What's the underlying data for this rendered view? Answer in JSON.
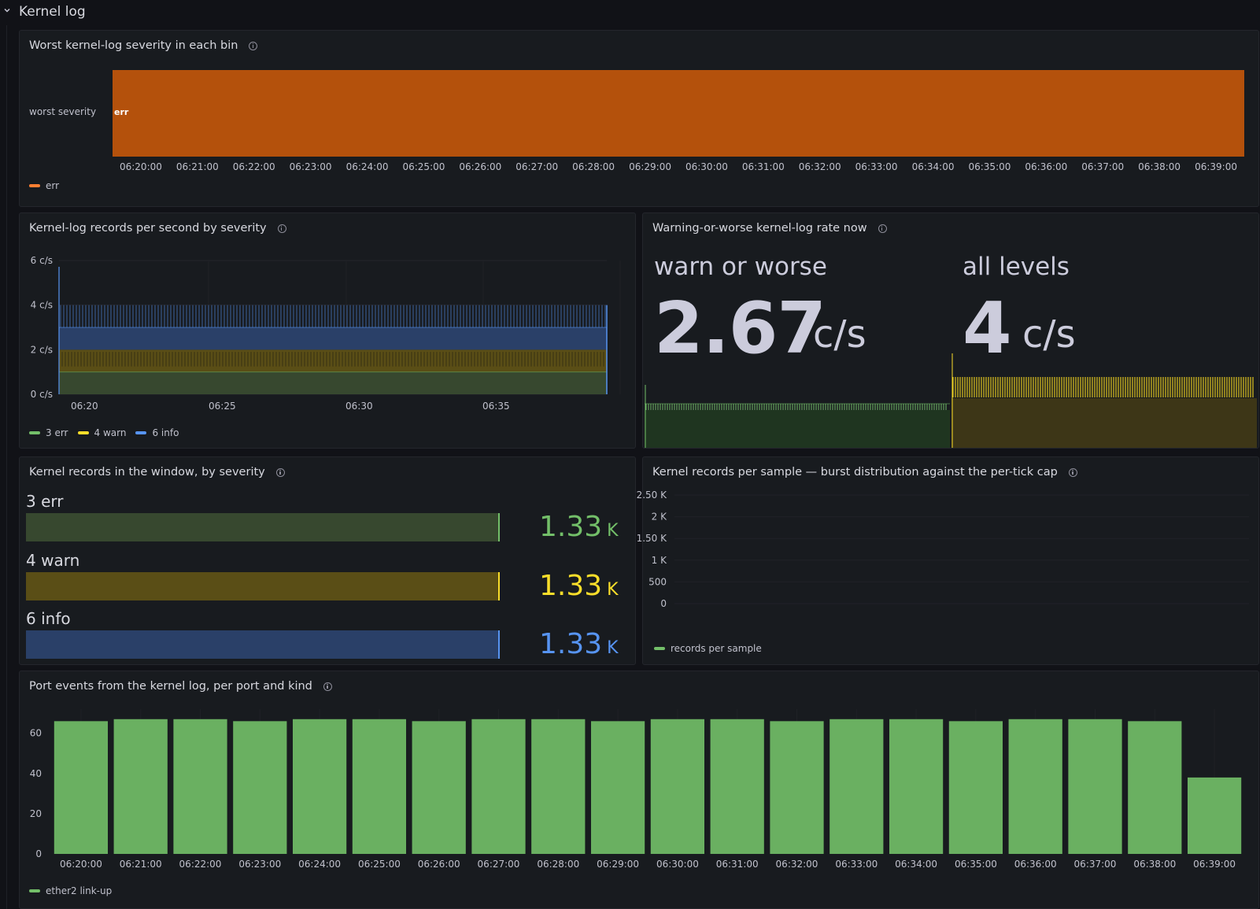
{
  "row": {
    "title": "Kernel log"
  },
  "colors": {
    "err": "#73bf69",
    "warn": "#fade2a",
    "info": "#5794f2",
    "state_err": "#b4510c",
    "legend_err": "#ff7f32"
  },
  "panels": {
    "state": {
      "title": "Worst kernel-log severity in each bin",
      "row_label": "worst severity",
      "value_label": "err",
      "times": [
        "06:20:00",
        "06:21:00",
        "06:22:00",
        "06:23:00",
        "06:24:00",
        "06:25:00",
        "06:26:00",
        "06:27:00",
        "06:28:00",
        "06:29:00",
        "06:30:00",
        "06:31:00",
        "06:32:00",
        "06:33:00",
        "06:34:00",
        "06:35:00",
        "06:36:00",
        "06:37:00",
        "06:38:00",
        "06:39:00"
      ],
      "legend": [
        "err"
      ]
    },
    "rate": {
      "title": "Kernel-log records per second by severity",
      "legend": [
        "3 err",
        "4 warn",
        "6 info"
      ]
    },
    "now": {
      "title": "Warning-or-worse kernel-log rate now",
      "stats": [
        {
          "label": "warn or worse",
          "value": "2.67",
          "unit": "c/s"
        },
        {
          "label": "all levels",
          "value": "4",
          "unit": "c/s"
        }
      ]
    },
    "window": {
      "title": "Kernel records in the window, by severity",
      "bars": [
        {
          "label": "3 err",
          "value": "1.33",
          "unit": "K",
          "fraction": 1.0
        },
        {
          "label": "4 warn",
          "value": "1.33",
          "unit": "K",
          "fraction": 1.0
        },
        {
          "label": "6 info",
          "value": "1.33",
          "unit": "K",
          "fraction": 1.0
        }
      ]
    },
    "burst": {
      "title": "Kernel records per sample — burst distribution against the per-tick cap",
      "legend": [
        "records per sample"
      ]
    },
    "port": {
      "title": "Port events from the kernel log, per port and kind",
      "legend": [
        "ether2 link-up"
      ]
    }
  },
  "chart_data": [
    {
      "type": "area",
      "title": "Kernel-log records per second by severity",
      "x_ticks": [
        "06:20",
        "06:25",
        "06:30",
        "06:35"
      ],
      "y_ticks": [
        "0 c/s",
        "2 c/s",
        "4 c/s",
        "6 c/s"
      ],
      "ylim": [
        0,
        6
      ],
      "stacked": true,
      "series": [
        {
          "name": "3 err",
          "value_range": [
            1,
            1
          ]
        },
        {
          "name": "4 warn",
          "value_range": [
            1,
            1
          ]
        },
        {
          "name": "6 info",
          "value_range": [
            1,
            2
          ]
        }
      ]
    },
    {
      "type": "line",
      "title": "Kernel records per sample — burst distribution against the per-tick cap",
      "y_ticks": [
        "0",
        "500",
        "1 K",
        "1.50 K",
        "2 K",
        "2.50 K"
      ],
      "ylim": [
        0,
        2500
      ],
      "series": [
        {
          "name": "records per sample",
          "values": []
        }
      ]
    },
    {
      "type": "bar",
      "title": "Port events from the kernel log, per port and kind",
      "categories": [
        "06:20:00",
        "06:21:00",
        "06:22:00",
        "06:23:00",
        "06:24:00",
        "06:25:00",
        "06:26:00",
        "06:27:00",
        "06:28:00",
        "06:29:00",
        "06:30:00",
        "06:31:00",
        "06:32:00",
        "06:33:00",
        "06:34:00",
        "06:35:00",
        "06:36:00",
        "06:37:00",
        "06:38:00",
        "06:39:00"
      ],
      "y_ticks": [
        "0",
        "20",
        "40",
        "60"
      ],
      "ylim": [
        0,
        72
      ],
      "series": [
        {
          "name": "ether2 link-up",
          "values": [
            66,
            67,
            67,
            66,
            67,
            67,
            66,
            67,
            67,
            66,
            67,
            67,
            66,
            67,
            67,
            66,
            67,
            67,
            66,
            38
          ]
        }
      ]
    }
  ]
}
